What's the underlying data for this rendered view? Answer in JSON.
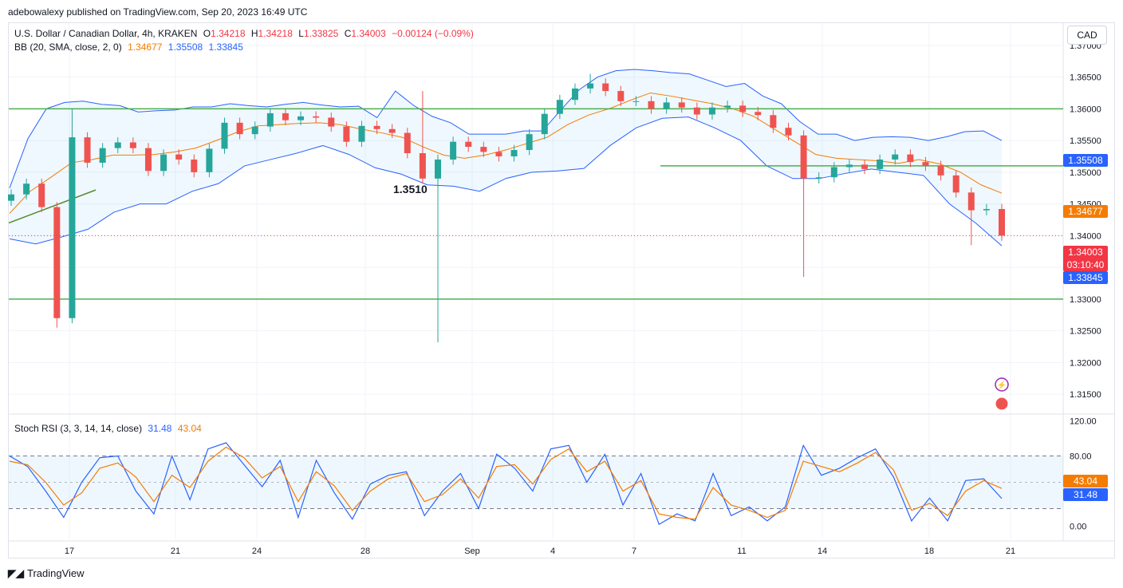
{
  "header": {
    "published": "adebowalexy published on TradingView.com, Sep 20, 2023 16:49 UTC"
  },
  "legend": {
    "symbol": "U.S. Dollar / Canadian Dollar, 4h, KRAKEN",
    "o_label": "O",
    "o": "1.34218",
    "h_label": "H",
    "h": "1.34218",
    "l_label": "L",
    "l": "1.33825",
    "c_label": "C",
    "c": "1.34003",
    "change": "−0.00124 (−0.09%)",
    "bb": "BB (20, SMA, close, 2, 0)",
    "bb_basis": "1.34677",
    "bb_upper": "1.35508",
    "bb_lower": "1.33845",
    "stoch": "Stoch RSI (3, 3, 14, 14, close)",
    "stoch_k": "31.48",
    "stoch_d": "43.04"
  },
  "currency_button": "CAD",
  "annotation": "1.3510",
  "price_tags": {
    "upper": "1.35508",
    "basis": "1.34677",
    "close": "1.34003",
    "countdown": "03:10:40",
    "lower": "1.33845",
    "stoch_d": "43.04",
    "stoch_k": "31.48"
  },
  "footer": {
    "brand": "TradingView"
  },
  "colors": {
    "up": "#26a69a",
    "down": "#ef5350",
    "bb_band": "#2962ff",
    "bb_basis": "#f57c00",
    "level": "#4caf50",
    "stoch_k": "#2962ff",
    "stoch_d": "#f57c00"
  },
  "chart_data": [
    {
      "type": "candlestick",
      "title": "U.S. Dollar / Canadian Dollar, 4h, KRAKEN",
      "ylim": [
        1.312,
        1.3735
      ],
      "y_ticks": [
        "1.37000",
        "1.36500",
        "1.36000",
        "1.35500",
        "1.35000",
        "1.34500",
        "1.34000",
        "1.33500",
        "1.33000",
        "1.32500",
        "1.32000",
        "1.31500"
      ],
      "x_ticks": [
        "17",
        "21",
        "24",
        "28",
        "Sep",
        "4",
        "7",
        "11",
        "14",
        "18",
        "21"
      ],
      "horizontal_levels": [
        1.36,
        1.351,
        1.33
      ],
      "closes": [
        1.3465,
        1.3482,
        1.3445,
        1.327,
        1.3555,
        1.3515,
        1.3538,
        1.3547,
        1.3538,
        1.3502,
        1.3528,
        1.352,
        1.35,
        1.3537,
        1.3578,
        1.356,
        1.3572,
        1.3593,
        1.3582,
        1.3588,
        1.3586,
        1.3572,
        1.3548,
        1.3573,
        1.3568,
        1.3562,
        1.353,
        1.349,
        1.352,
        1.3548,
        1.354,
        1.3532,
        1.3525,
        1.3535,
        1.356,
        1.3592,
        1.3614,
        1.3632,
        1.364,
        1.3628,
        1.3612,
        1.3612,
        1.36,
        1.361,
        1.3602,
        1.3591,
        1.3602,
        1.3605,
        1.3595,
        1.359,
        1.357,
        1.3558,
        1.349,
        1.3492,
        1.3508,
        1.3512,
        1.3505,
        1.352,
        1.3528,
        1.3516,
        1.351,
        1.3495,
        1.3468,
        1.344,
        1.3442,
        1.34
      ],
      "bb_upper": [
        1.3475,
        1.3553,
        1.36,
        1.361,
        1.3612,
        1.3607,
        1.3605,
        1.3595,
        1.3597,
        1.3598,
        1.3603,
        1.3603,
        1.3608,
        1.3605,
        1.3603,
        1.3607,
        1.361,
        1.3606,
        1.3603,
        1.3604,
        1.3586,
        1.3628,
        1.3605,
        1.3588,
        1.3578,
        1.356,
        1.356,
        1.356,
        1.3565,
        1.3565,
        1.3598,
        1.363,
        1.365,
        1.366,
        1.3662,
        1.366,
        1.3657,
        1.3655,
        1.3645,
        1.3635,
        1.364,
        1.362,
        1.3608,
        1.358,
        1.356,
        1.356,
        1.355,
        1.3555,
        1.3556,
        1.3555,
        1.355,
        1.3556,
        1.3564,
        1.3565,
        1.355
      ],
      "bb_basis": [
        1.3435,
        1.347,
        1.3492,
        1.3515,
        1.352,
        1.3527,
        1.3527,
        1.3528,
        1.3532,
        1.3538,
        1.355,
        1.3563,
        1.3573,
        1.3575,
        1.3577,
        1.3578,
        1.3575,
        1.3568,
        1.3562,
        1.3555,
        1.354,
        1.3527,
        1.3522,
        1.3527,
        1.3535,
        1.3545,
        1.3555,
        1.3575,
        1.359,
        1.36,
        1.3613,
        1.3625,
        1.362,
        1.3614,
        1.3608,
        1.36,
        1.3588,
        1.3568,
        1.3548,
        1.3528,
        1.3522,
        1.352,
        1.3518,
        1.3514,
        1.352,
        1.3513,
        1.35,
        1.348,
        1.3467
      ],
      "bb_lower": [
        1.3395,
        1.3387,
        1.3398,
        1.341,
        1.3437,
        1.345,
        1.345,
        1.347,
        1.3482,
        1.351,
        1.352,
        1.353,
        1.3542,
        1.3528,
        1.3507,
        1.3497,
        1.348,
        1.3478,
        1.347,
        1.349,
        1.35,
        1.3502,
        1.3506,
        1.3542,
        1.357,
        1.3585,
        1.3587,
        1.357,
        1.355,
        1.351,
        1.349,
        1.349,
        1.3498,
        1.3505,
        1.35,
        1.3495,
        1.345,
        1.342,
        1.3384
      ]
    },
    {
      "type": "line",
      "title": "Stoch RSI (3, 3, 14, 14, close)",
      "ylim": [
        -15,
        125
      ],
      "y_ticks": [
        "120.00",
        "80.00",
        "0.00"
      ],
      "band": [
        20,
        80
      ],
      "series": [
        {
          "name": "K",
          "values": [
            80,
            68,
            40,
            10,
            50,
            78,
            80,
            40,
            14,
            80,
            30,
            88,
            95,
            70,
            45,
            75,
            10,
            75,
            38,
            8,
            48,
            58,
            62,
            12,
            40,
            60,
            20,
            82,
            66,
            40,
            88,
            92,
            50,
            82,
            24,
            60,
            2,
            14,
            6,
            60,
            12,
            22,
            6,
            22,
            92,
            58,
            66,
            78,
            88,
            56,
            6,
            32,
            6,
            52,
            54,
            31.48
          ]
        },
        {
          "name": "D",
          "values": [
            74,
            70,
            50,
            24,
            38,
            66,
            72,
            56,
            28,
            58,
            44,
            74,
            90,
            78,
            55,
            68,
            28,
            62,
            46,
            18,
            40,
            54,
            60,
            28,
            36,
            54,
            32,
            68,
            70,
            48,
            76,
            88,
            62,
            74,
            40,
            52,
            14,
            10,
            8,
            44,
            24,
            18,
            10,
            18,
            74,
            68,
            62,
            72,
            84,
            64,
            18,
            26,
            12,
            40,
            52,
            43.04
          ]
        }
      ]
    }
  ]
}
